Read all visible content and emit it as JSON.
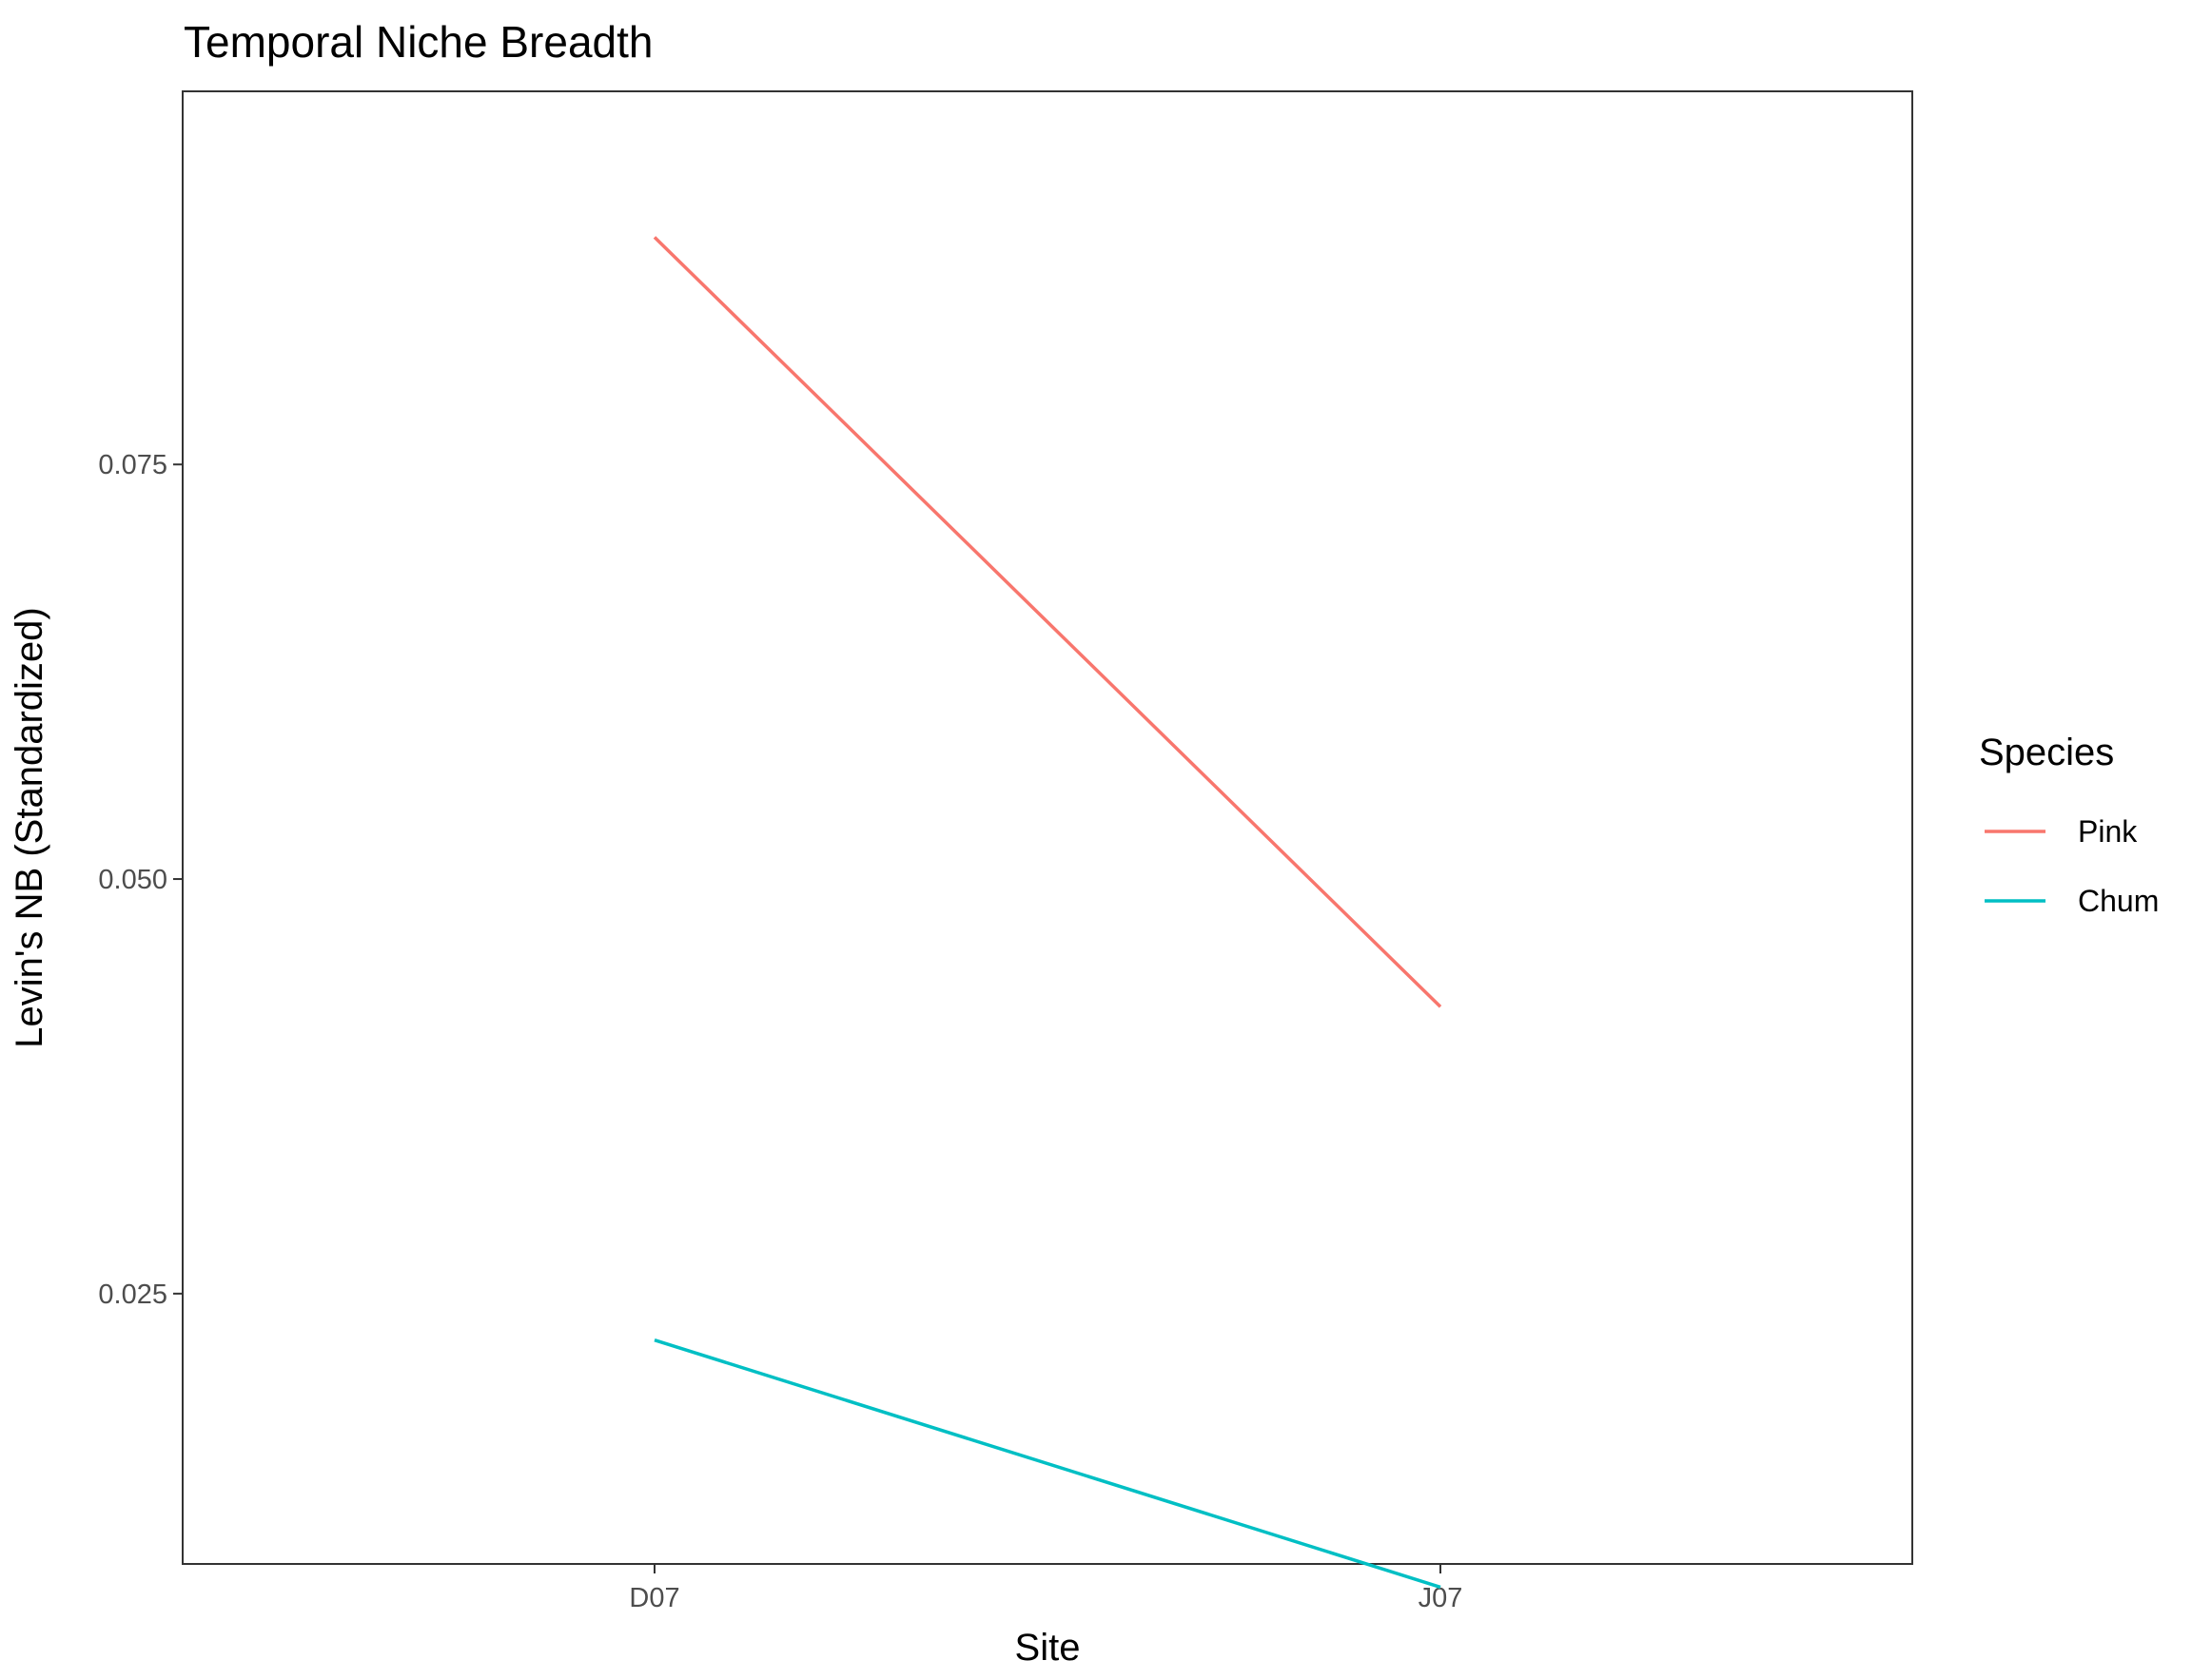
{
  "chart_data": {
    "type": "line",
    "title": "Temporal Niche Breadth",
    "xlabel": "Site",
    "ylabel": "Levin's NB (Standardized)",
    "categories": [
      "D07",
      "J07"
    ],
    "y_ticks": [
      {
        "value": 0.025,
        "label": "0.025"
      },
      {
        "value": 0.05,
        "label": "0.050"
      },
      {
        "value": 0.075,
        "label": "0.075"
      }
    ],
    "ylim": [
      0.0087,
      0.0975
    ],
    "grid": false,
    "legend": {
      "title": "Species",
      "placement": "right"
    },
    "series": [
      {
        "name": "Pink",
        "color": "#F8766D",
        "values": [
          0.0887,
          0.0423
        ]
      },
      {
        "name": "Chum",
        "color": "#00BFC4",
        "values": [
          0.0222,
          0.0073
        ]
      }
    ]
  }
}
